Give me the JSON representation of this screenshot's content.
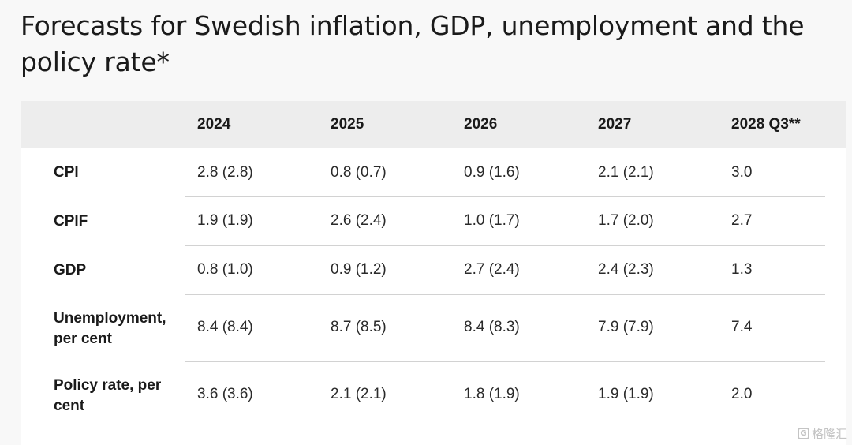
{
  "title": "Forecasts for Swedish inflation, GDP, unemployment and the policy rate*",
  "table": {
    "headers": [
      "",
      "2024",
      "2025",
      "2026",
      "2027",
      "2028 Q3**"
    ],
    "rows": [
      {
        "label": "CPI",
        "values": [
          "2.8 (2.8)",
          "0.8 (0.7)",
          "0.9 (1.6)",
          "2.1 (2.1)",
          "3.0"
        ]
      },
      {
        "label": "CPIF",
        "values": [
          "1.9 (1.9)",
          "2.6 (2.4)",
          "1.0 (1.7)",
          "1.7 (2.0)",
          "2.7"
        ]
      },
      {
        "label": "GDP",
        "values": [
          "0.8 (1.0)",
          "0.9 (1.2)",
          "2.7 (2.4)",
          "2.4 (2.3)",
          "1.3"
        ]
      },
      {
        "label": "Unemployment, per cent",
        "values": [
          "8.4 (8.4)",
          "8.7 (8.5)",
          "8.4 (8.3)",
          "7.9 (7.9)",
          "7.4"
        ]
      },
      {
        "label": "Policy rate, per cent",
        "values": [
          "3.6 (3.6)",
          "2.1 (2.1)",
          "1.8 (1.9)",
          "1.9 (1.9)",
          "2.0"
        ]
      }
    ]
  },
  "watermark": {
    "text": "格隆汇",
    "logo": "G"
  },
  "colors": {
    "page_background": "#f8f8f8",
    "table_background": "#ffffff",
    "header_background": "#ededed",
    "divider": "#d2d2d2",
    "text": "#1a1a1a",
    "watermark": "#c4c4c4"
  }
}
